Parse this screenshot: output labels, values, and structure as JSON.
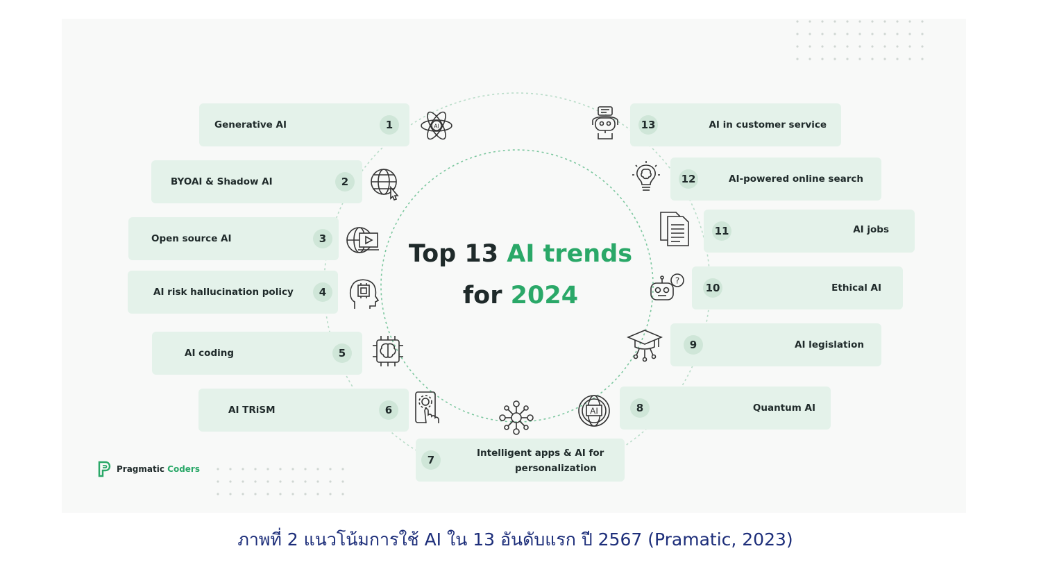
{
  "title": {
    "line1_prefix": "Top 13 ",
    "line1_accent": "AI trends",
    "line2_prefix": "for ",
    "line2_accent": "2024"
  },
  "trends": [
    {
      "number": "1",
      "label": "Generative AI",
      "icon": "atom-ai-icon"
    },
    {
      "number": "2",
      "label": "BYOAI & Shadow AI",
      "icon": "globe-cursor-icon"
    },
    {
      "number": "3",
      "label": "Open source AI",
      "icon": "globe-video-icon"
    },
    {
      "number": "4",
      "label": "AI risk hallucination policy",
      "icon": "head-chip-icon"
    },
    {
      "number": "5",
      "label": "AI coding",
      "icon": "brain-chip-icon"
    },
    {
      "number": "6",
      "label": "AI TRiSM",
      "icon": "touch-gear-icon"
    },
    {
      "number": "7",
      "label": "Intelligent apps & AI for personalization",
      "label_line1": "Intelligent apps & AI for",
      "label_line2": "personalization",
      "icon": "network-nodes-icon"
    },
    {
      "number": "8",
      "label": "Quantum AI",
      "icon": "ai-globe-icon"
    },
    {
      "number": "9",
      "label": "AI legislation",
      "icon": "graduation-cap-icon"
    },
    {
      "number": "10",
      "label": "Ethical AI",
      "icon": "robot-question-icon"
    },
    {
      "number": "11",
      "label": "AI jobs",
      "icon": "documents-icon"
    },
    {
      "number": "12",
      "label": "AI-powered online search",
      "icon": "lightbulb-brain-icon"
    },
    {
      "number": "13",
      "label": "AI in customer service",
      "icon": "robot-support-icon"
    }
  ],
  "logo": {
    "name_part1": "Pragmatic",
    "name_part2": "Coders"
  },
  "caption": "ภาพที่ 2 แนวโน้มการใช้ AI ใน 13 อันดับแรก ปี 2567 (Pramatic, 2023)",
  "colors": {
    "accent": "#2aa868",
    "card": "#e4f2ea",
    "caption": "#1d2e7a",
    "text": "#1f2a2a"
  }
}
